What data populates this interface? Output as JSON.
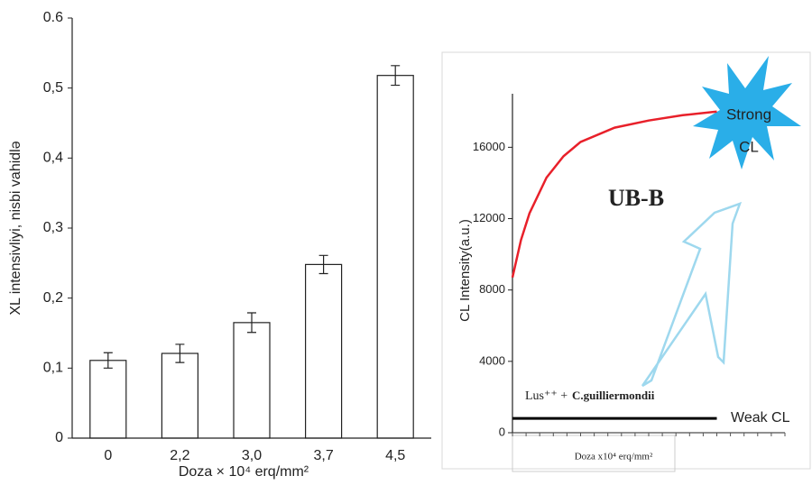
{
  "chart_data": [
    {
      "type": "bar",
      "y_label": "XL intensivliyi, nisbi vahidlə",
      "x_label": "Doza × 10⁴ erq/mm²",
      "categories": [
        "0",
        "2,2",
        "3,0",
        "3,7",
        "4,5"
      ],
      "values": [
        0.111,
        0.121,
        0.165,
        0.248,
        0.518
      ],
      "errors": [
        0.011,
        0.013,
        0.014,
        0.013,
        0.014
      ],
      "color": "#ffffff",
      "ylim": [
        0,
        0.6
      ],
      "yticks": [
        0,
        {
          "value": 0.1,
          "label": "0,1"
        },
        {
          "value": 0.2,
          "label": "0,2"
        },
        {
          "value": 0.3,
          "label": "0,3"
        },
        {
          "value": 0.4,
          "label": "0,4"
        },
        {
          "value": 0.5,
          "label": "0,5"
        },
        0.6
      ]
    },
    {
      "type": "line",
      "y_label": "CL Intensity(a.u.)",
      "x_label": "Doza x10⁴ erq/mm²",
      "annotations": [
        "UB-B",
        "Strong",
        "CL",
        "Lus⁺⁺ +",
        "C.guilliermondii",
        "Weak CL"
      ],
      "x": [
        0,
        0.25,
        0.5,
        1,
        1.5,
        2,
        3,
        4,
        5,
        6
      ],
      "series": [
        {
          "color": "#e8202a",
          "values": [
            8700,
            10800,
            12300,
            14300,
            15500,
            16300,
            17100,
            17500,
            17800,
            18000
          ]
        },
        {
          "color": "#000000",
          "values": [
            800,
            800,
            800,
            800,
            800,
            800,
            800,
            800,
            800,
            800
          ]
        }
      ],
      "xlim": [
        0,
        8
      ],
      "ylim": [
        0,
        19000
      ],
      "yticks": [
        0,
        4000,
        8000,
        12000,
        16000
      ]
    }
  ]
}
